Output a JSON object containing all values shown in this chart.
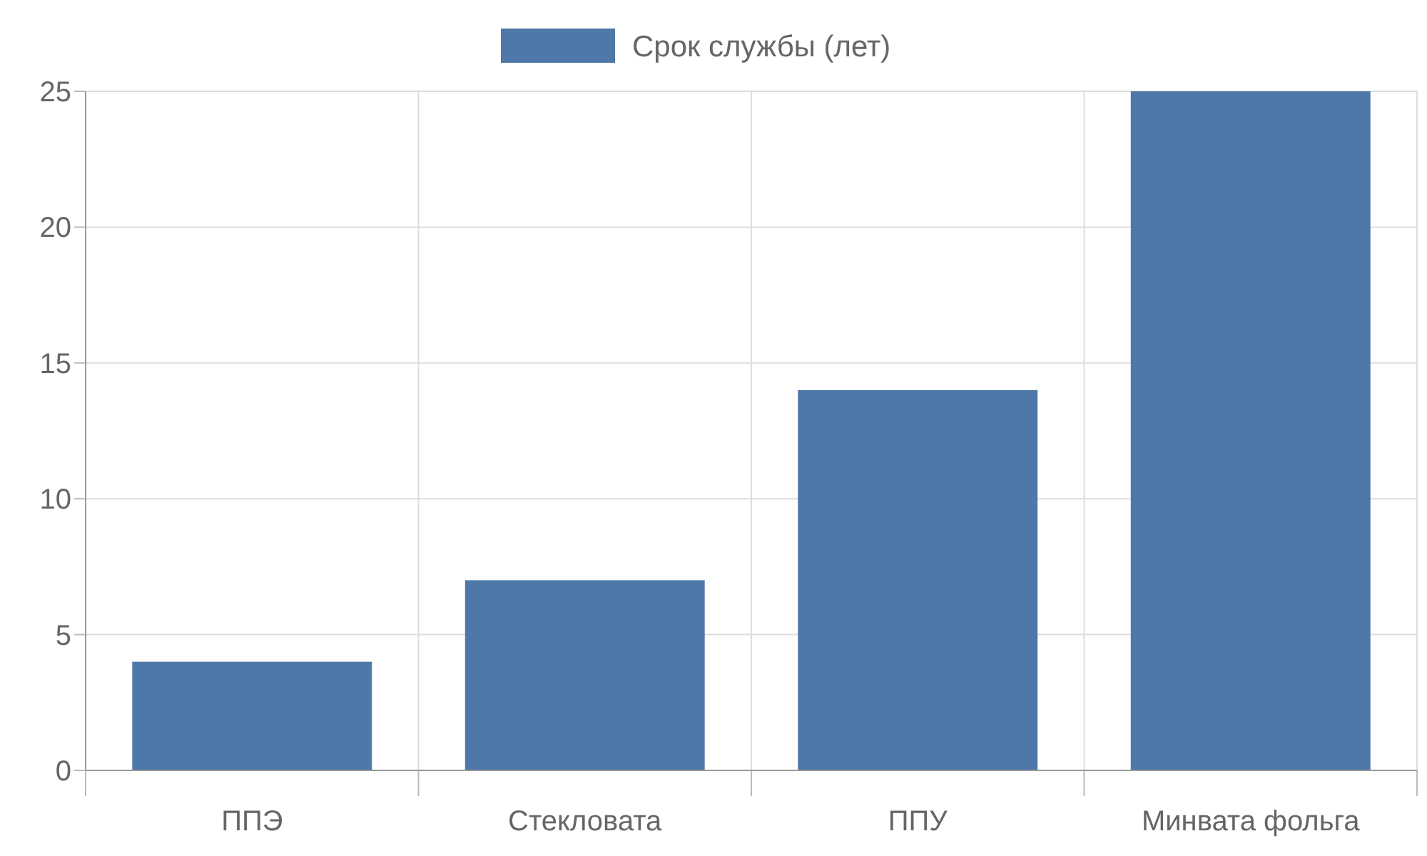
{
  "chart_data": {
    "type": "bar",
    "categories": [
      "ППЭ",
      "Стекловата",
      "ППУ",
      "Минвата фольга"
    ],
    "series": [
      {
        "name": "Срок службы (лет)",
        "color": "#4d78a8",
        "values": [
          4,
          7,
          14,
          25
        ]
      }
    ],
    "ylim": [
      0,
      25
    ],
    "yticks": [
      0,
      5,
      10,
      15,
      20,
      25
    ],
    "grid": true,
    "legend": "top"
  }
}
